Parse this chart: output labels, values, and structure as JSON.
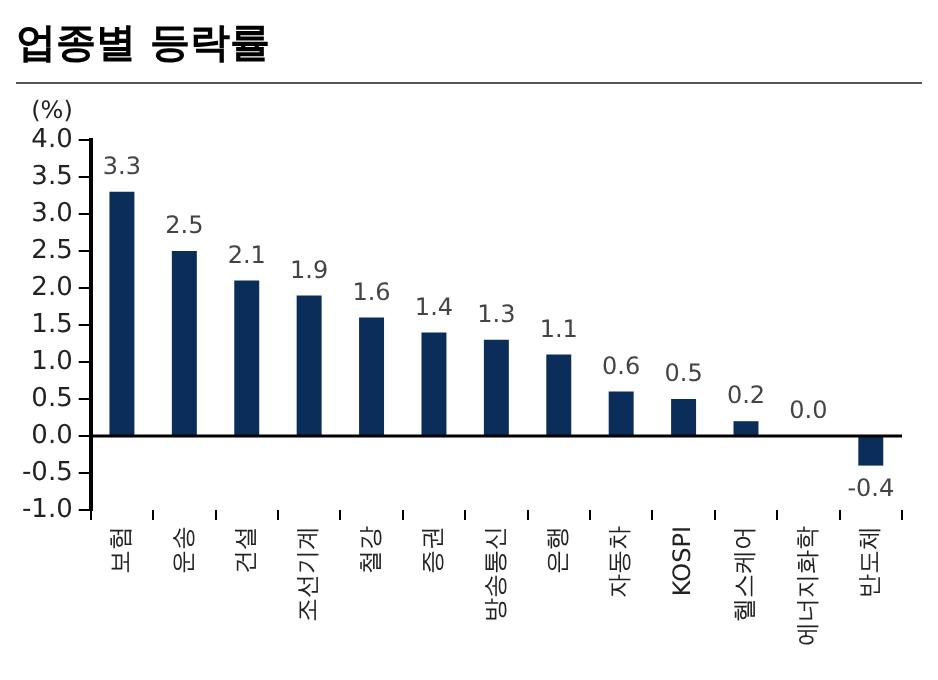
{
  "chart_data": {
    "type": "bar",
    "title": "업종별 등락률",
    "ylabel": "(%)",
    "categories": [
      "보험",
      "운송",
      "건설",
      "조선기계",
      "철강",
      "증권",
      "방송통신",
      "은행",
      "자동차",
      "KOSPI",
      "헬스케어",
      "에너지화학",
      "반도체"
    ],
    "values": [
      3.3,
      2.5,
      2.1,
      1.9,
      1.6,
      1.4,
      1.3,
      1.1,
      0.6,
      0.5,
      0.2,
      0.0,
      -0.4
    ],
    "value_labels": [
      "3.3",
      "2.5",
      "2.1",
      "1.9",
      "1.6",
      "1.4",
      "1.3",
      "1.1",
      "0.6",
      "0.5",
      "0.2",
      "0.0",
      "-0.4"
    ],
    "color": "#0a2d5a",
    "ylim": [
      -1.0,
      4.0
    ],
    "yticks": [
      {
        "value": -1,
        "label": "-1.0"
      },
      {
        "value": -0.5,
        "label": "-0.5"
      },
      {
        "value": 0,
        "label": "0.0"
      },
      {
        "value": 0.5,
        "label": "0.5"
      },
      {
        "value": 1,
        "label": "1.0"
      },
      {
        "value": 1.5,
        "label": "1.5"
      },
      {
        "value": 2,
        "label": "2.0"
      },
      {
        "value": 2.5,
        "label": "2.5"
      },
      {
        "value": 3,
        "label": "3.0"
      },
      {
        "value": 3.5,
        "label": "3.5"
      },
      {
        "value": 4,
        "label": "4.0"
      }
    ],
    "legend": false
  }
}
